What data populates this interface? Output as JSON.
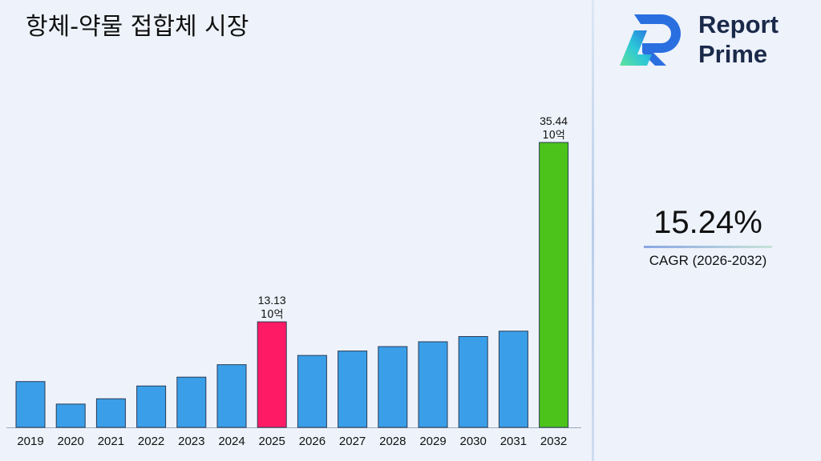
{
  "title": "항체-약물 접합체 시장",
  "logo": {
    "line1": "Report",
    "line2": "Prime"
  },
  "cagr": {
    "value": "15.24%",
    "label": "CAGR (2026-2032)"
  },
  "colors": {
    "default": "#3a9fe8",
    "highlight_2025": "#ff1a66",
    "highlight_2032": "#4cc31a"
  },
  "chart_data": {
    "type": "bar",
    "categories": [
      "2019",
      "2020",
      "2021",
      "2022",
      "2023",
      "2024",
      "2025",
      "2026",
      "2027",
      "2028",
      "2029",
      "2030",
      "2031",
      "2032"
    ],
    "values": [
      5.7,
      2.9,
      3.56,
      5.15,
      6.25,
      7.8,
      13.13,
      8.95,
      9.5,
      10.05,
      10.65,
      11.3,
      11.97,
      35.44
    ],
    "data_labels": [
      {
        "index": 6,
        "value": "13.13",
        "unit": "10억"
      },
      {
        "index": 13,
        "value": "35.44",
        "unit": "10억"
      }
    ],
    "title": "항체-약물 접합체 시장",
    "xlabel": "",
    "ylabel": "",
    "grid": false
  }
}
